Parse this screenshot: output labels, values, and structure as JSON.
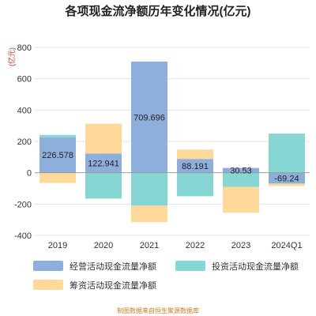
{
  "chart_data": {
    "type": "bar",
    "stacked": true,
    "title": "各项现金流净额历年变化情况(亿元)",
    "unit_label": "(亿元)",
    "categories": [
      "2019",
      "2020",
      "2021",
      "2022",
      "2023",
      "2024Q1"
    ],
    "ylim": [
      -400,
      800
    ],
    "yticks": [
      -400,
      -200,
      0,
      200,
      400,
      600,
      800
    ],
    "grid": true,
    "legend_position": "bottom",
    "series": [
      {
        "name": "经营活动现金流量净额",
        "color": "#8EAEDC",
        "values": [
          226.578,
          122.941,
          709.696,
          88.191,
          30.53,
          -69.24
        ],
        "labels": [
          "226.578",
          "122.941",
          "709.696",
          "88.191",
          "30.53",
          "-69.24"
        ]
      },
      {
        "name": "投资活动现金流量净额",
        "color": "#86D6D4",
        "values": [
          15,
          -165,
          -210,
          -150,
          -90,
          250
        ]
      },
      {
        "name": "筹资活动现金流量净额",
        "color": "#FFD99A",
        "values": [
          -65,
          190,
          -105,
          60,
          -165,
          -15
        ]
      }
    ]
  },
  "footer": {
    "source": "制图数据来自恒生聚源数据库"
  }
}
